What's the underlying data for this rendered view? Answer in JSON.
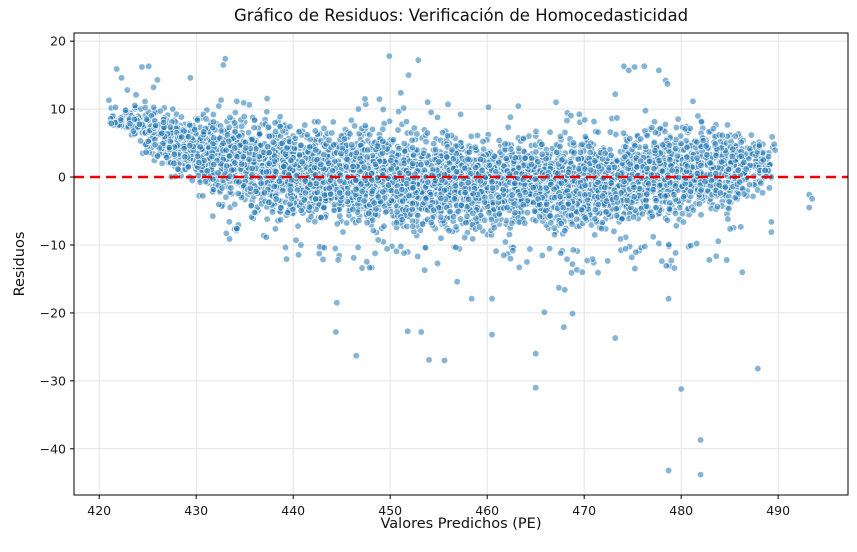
{
  "figure": {
    "background": "#ffffff"
  },
  "chart_data": {
    "type": "scatter",
    "title": "Gráfico de Residuos: Verificación de Homocedasticidad",
    "xlabel": "Valores Predichos (PE)",
    "ylabel": "Residuos",
    "xlim": [
      417.4,
      497.2
    ],
    "ylim": [
      -46.8,
      21.2
    ],
    "x_ticks": [
      420,
      430,
      440,
      450,
      460,
      470,
      480,
      490
    ],
    "x_tick_labels": [
      "420",
      "430",
      "440",
      "450",
      "460",
      "470",
      "480",
      "490"
    ],
    "y_ticks": [
      20,
      10,
      0,
      -10,
      -20,
      -30,
      -40
    ],
    "y_tick_labels": [
      "20",
      "10",
      "0",
      "−10",
      "−20",
      "−30",
      "−40"
    ],
    "grid": true,
    "grid_color": "#e4e4e4",
    "spine_color": "#000000",
    "legend": false,
    "reference_line": {
      "y": 0,
      "color": "#ee0000",
      "style": "dashed",
      "width": 2.5,
      "dash": [
        10,
        6
      ]
    },
    "marker": {
      "color": "#1f77b4",
      "alpha": 0.55,
      "edge_color": "#ffffff",
      "edge_alpha": 0.85,
      "radius": 3.3
    },
    "cloud": {
      "description": "Dense residual cloud of ~5000 overlapping points between x=421 and x=490; band spans roughly y=-10..+10, thinner and higher (y=3..12) on the far left, widest in the middle, narrowing again near x=489.",
      "n_points": 5200,
      "seed": 12345,
      "envelope": [
        [
          421.0,
          11.0,
          7.5,
          0.1
        ],
        [
          423.0,
          11.5,
          5.0,
          0.25
        ],
        [
          425.0,
          11.5,
          2.5,
          0.45
        ],
        [
          427.5,
          11.5,
          -0.5,
          0.65
        ],
        [
          430.0,
          11.3,
          -3.5,
          0.8
        ],
        [
          433.0,
          11.0,
          -6.0,
          0.92
        ],
        [
          436.0,
          10.5,
          -7.5,
          1.0
        ],
        [
          440.0,
          10.0,
          -8.8,
          1.05
        ],
        [
          445.0,
          9.5,
          -9.6,
          1.05
        ],
        [
          450.0,
          9.2,
          -10.0,
          1.05
        ],
        [
          455.0,
          8.7,
          -10.3,
          1.05
        ],
        [
          460.0,
          8.3,
          -10.2,
          1.05
        ],
        [
          465.0,
          8.2,
          -10.0,
          1.05
        ],
        [
          470.0,
          8.0,
          -10.8,
          1.05
        ],
        [
          475.0,
          8.2,
          -10.0,
          1.12
        ],
        [
          478.5,
          10.0,
          -9.6,
          1.05
        ],
        [
          481.5,
          11.0,
          -9.0,
          0.95
        ],
        [
          484.0,
          9.8,
          -8.0,
          0.85
        ],
        [
          486.5,
          9.0,
          -6.3,
          0.6
        ],
        [
          488.5,
          7.8,
          -4.0,
          0.3
        ],
        [
          489.7,
          7.0,
          -1.5,
          0.08
        ]
      ],
      "bottom_fringe": {
        "n": 90,
        "scale": 1.6,
        "max": 3.5,
        "x_min": 431
      },
      "top_fringe": {
        "n": 30,
        "scale": 0.8,
        "max": 2.2,
        "x_min": 431
      }
    },
    "outliers": [
      [
        421.0,
        11.3
      ],
      [
        421.8,
        15.9
      ],
      [
        422.3,
        14.6
      ],
      [
        422.9,
        12.8
      ],
      [
        423.8,
        12.1
      ],
      [
        424.4,
        16.2
      ],
      [
        425.1,
        16.3
      ],
      [
        425.6,
        13.2
      ],
      [
        426.0,
        14.3
      ],
      [
        429.4,
        14.6
      ],
      [
        432.8,
        16.5
      ],
      [
        433.0,
        17.4
      ],
      [
        447.4,
        11.5
      ],
      [
        449.9,
        17.8
      ],
      [
        451.1,
        12.4
      ],
      [
        451.9,
        15.0
      ],
      [
        452.9,
        17.2
      ],
      [
        467.1,
        11.0
      ],
      [
        473.2,
        12.2
      ],
      [
        474.1,
        16.3
      ],
      [
        474.6,
        15.7
      ],
      [
        475.2,
        16.2
      ],
      [
        476.2,
        16.3
      ],
      [
        477.7,
        15.7
      ],
      [
        478.4,
        14.2
      ],
      [
        478.6,
        13.7
      ],
      [
        444.5,
        -18.5
      ],
      [
        444.4,
        -22.8
      ],
      [
        446.5,
        -26.3
      ],
      [
        447.1,
        -13.4
      ],
      [
        451.8,
        -22.7
      ],
      [
        453.2,
        -22.8
      ],
      [
        454.0,
        -26.9
      ],
      [
        455.6,
        -27.0
      ],
      [
        456.9,
        -15.4
      ],
      [
        458.4,
        -17.9
      ],
      [
        460.5,
        -17.9
      ],
      [
        460.5,
        -23.2
      ],
      [
        462.4,
        -12.0
      ],
      [
        463.3,
        -13.3
      ],
      [
        464.1,
        -12.5
      ],
      [
        465.0,
        -26.0
      ],
      [
        465.0,
        -31.0
      ],
      [
        465.9,
        -19.9
      ],
      [
        467.4,
        -16.3
      ],
      [
        468.0,
        -16.6
      ],
      [
        468.8,
        -20.1
      ],
      [
        467.9,
        -22.1
      ],
      [
        469.8,
        -14.0
      ],
      [
        470.3,
        -12.3
      ],
      [
        473.2,
        -23.7
      ],
      [
        478.7,
        -17.9
      ],
      [
        479.3,
        -13.4
      ],
      [
        480.0,
        -31.2
      ],
      [
        478.7,
        -43.2
      ],
      [
        482.0,
        -38.7
      ],
      [
        482.0,
        -43.8
      ],
      [
        487.9,
        -28.2
      ],
      [
        482.9,
        -12.2
      ],
      [
        484.7,
        -12.2
      ],
      [
        486.3,
        -14.0
      ],
      [
        489.3,
        -6.6
      ],
      [
        489.3,
        -8.1
      ],
      [
        489.1,
        -1.6
      ],
      [
        493.2,
        -2.6
      ],
      [
        493.5,
        -3.2
      ],
      [
        493.2,
        -4.5
      ]
    ]
  }
}
